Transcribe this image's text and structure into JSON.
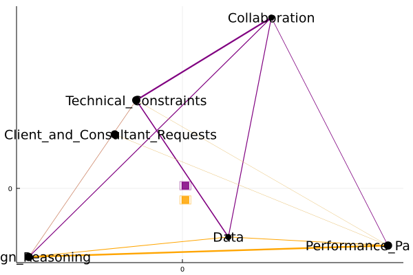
{
  "chart_data": {
    "type": "network",
    "axes": {
      "x_ticks": [
        "0"
      ],
      "y_ticks": [
        "0"
      ],
      "grid": true
    },
    "nodes": [
      {
        "id": "collaboration",
        "label": "Collaboration",
        "x": 0.28,
        "y": 0.61,
        "label_offset": 0
      },
      {
        "id": "technical_constraints",
        "label": "Technical_Constraints",
        "x": -0.16,
        "y": 0.32,
        "label_offset": 0
      },
      {
        "id": "client_requests",
        "label": "Client_and_Consultant_Requests",
        "x": -0.23,
        "y": 0.2,
        "label_offset": 0
      },
      {
        "id": "data",
        "label": "Data",
        "x": 0.14,
        "y": -0.16,
        "label_offset": 0
      },
      {
        "id": "performance",
        "label": "Performance_Pa",
        "x": 0.66,
        "y": -0.19,
        "label_offset": 0
      },
      {
        "id": "design_reasoning",
        "label": "gn_Reasoning",
        "x": -0.51,
        "y": -0.23,
        "label_offset": 0
      }
    ],
    "edges": [
      {
        "from": "collaboration",
        "to": "technical_constraints",
        "color": "#800080",
        "weight": 2.2
      },
      {
        "from": "collaboration",
        "to": "design_reasoning",
        "color": "#800080",
        "weight": 1.2
      },
      {
        "from": "collaboration",
        "to": "data",
        "color": "#800080",
        "weight": 1.2
      },
      {
        "from": "collaboration",
        "to": "performance",
        "color": "#800080",
        "weight": 0.8
      },
      {
        "from": "technical_constraints",
        "to": "data",
        "color": "#800080",
        "weight": 1.6
      },
      {
        "from": "technical_constraints",
        "to": "design_reasoning",
        "color": "#c87a5a",
        "weight": 0.7
      },
      {
        "from": "technical_constraints",
        "to": "performance",
        "color": "#e8c070",
        "weight": 0.5
      },
      {
        "from": "client_requests",
        "to": "performance",
        "color": "#e8c070",
        "weight": 0.5
      },
      {
        "from": "design_reasoning",
        "to": "performance",
        "color": "#ffa500",
        "weight": 2.4
      },
      {
        "from": "design_reasoning",
        "to": "data",
        "color": "#ffa500",
        "weight": 1.0
      },
      {
        "from": "data",
        "to": "performance",
        "color": "#ffa500",
        "weight": 1.0
      }
    ],
    "markers": [
      {
        "id": "purple-marker",
        "x": 0.0,
        "y": 0.02,
        "color": "#800080"
      },
      {
        "id": "orange-marker",
        "x": 0.0,
        "y": -0.03,
        "color": "#ffa500"
      }
    ],
    "xlim": [
      -0.55,
      0.71
    ],
    "ylim": [
      -0.25,
      0.65
    ]
  }
}
